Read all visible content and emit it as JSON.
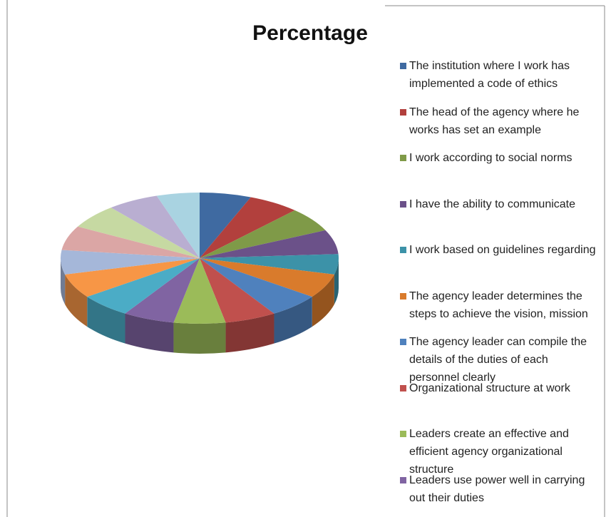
{
  "chart_data": {
    "type": "pie",
    "title": "Percentage",
    "categories": [
      "The institution where I work has implemented a code of ethics",
      "The head of the agency where he works has set an example",
      "I work according to social norms",
      "I have the ability to communicate",
      "I work based on guidelines regarding",
      "The agency leader determines the steps to achieve the vision, mission",
      "The agency leader can compile the details of the duties of each personnel clearly",
      "Organizational structure at work",
      "Leaders create an effective and efficient agency organizational structure",
      "Leaders use power well in carrying out their duties",
      null,
      null,
      null,
      null,
      null,
      null,
      null
    ],
    "values": [
      6,
      6,
      6,
      6,
      5,
      6,
      6,
      6,
      6,
      6,
      6,
      6,
      6,
      6,
      6,
      6,
      5
    ],
    "colors": [
      "#3f6aa1",
      "#b2403d",
      "#7f9a48",
      "#6b5189",
      "#3c92a8",
      "#d97b2c",
      "#4f81bd",
      "#c0504d",
      "#9bbb59",
      "#8064a2",
      "#4bacc6",
      "#f79646",
      "#a5b7d9",
      "#dba6a5",
      "#c6d9a2",
      "#b9aed1",
      "#a9d3e1"
    ],
    "legend": "right"
  }
}
